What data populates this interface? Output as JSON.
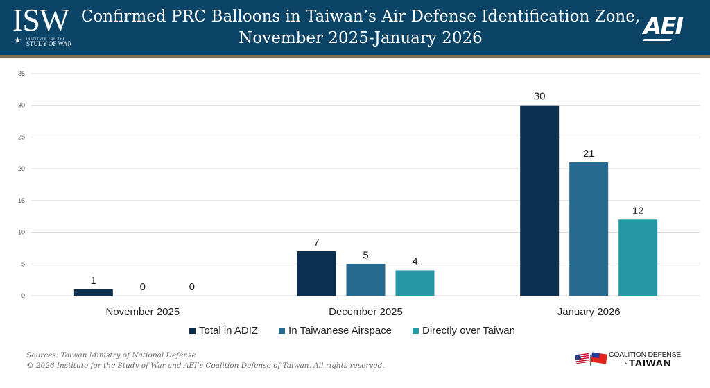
{
  "header": {
    "title_line1": "Confirmed PRC Balloons in Taiwan’s Air Defense Identification Zone,",
    "title_line2": "November 2025-January 2026",
    "logo_left": {
      "mark": "ISW",
      "tagline_top": "INSTITUTE FOR THE",
      "tagline_bottom": "STUDY OF WAR"
    },
    "logo_right": {
      "mark": "AEI"
    },
    "background_color": "#0b4466",
    "accent_stripe_color": "#7d7358"
  },
  "chart_data": {
    "type": "bar",
    "title": "Confirmed PRC Balloons in Taiwan’s Air Defense Identification Zone, November 2025-January 2026",
    "xlabel": "",
    "ylabel": "",
    "categories": [
      "November 2025",
      "December 2025",
      "January 2026"
    ],
    "series": [
      {
        "name": "Total in ADIZ",
        "color": "#0b2f4f",
        "values": [
          1,
          7,
          30
        ]
      },
      {
        "name": "In Taiwanese Airspace",
        "color": "#266b8f",
        "values": [
          0,
          5,
          21
        ]
      },
      {
        "name": "Directly over Taiwan",
        "color": "#2599a5",
        "values": [
          0,
          4,
          12
        ]
      }
    ],
    "ylim": [
      0,
      35
    ],
    "yticks": [
      0,
      5,
      10,
      15,
      20,
      25,
      30,
      35
    ],
    "grid": true,
    "data_labels": true,
    "legend_position": "bottom"
  },
  "footer": {
    "sources": "Sources: Taiwan Ministry of National Defense",
    "copyright": "© 2026 Institute for the Study of War and AEI’s Coalition Defense of Taiwan. All rights reserved."
  },
  "partner_logo": {
    "line1": "COALITION DEFENSE",
    "of": "OF",
    "line2": "TAIWAN"
  }
}
